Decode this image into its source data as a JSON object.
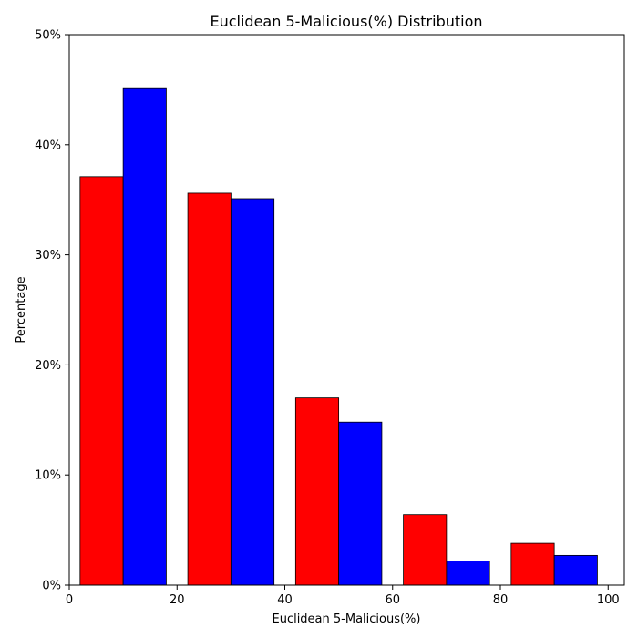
{
  "chart_data": {
    "type": "bar",
    "title": "Euclidean 5-Malicious(%) Distribution",
    "xlabel": "Euclidean 5-Malicious(%)",
    "ylabel": "Percentage",
    "xlim": [
      0,
      103
    ],
    "ylim": [
      0,
      50
    ],
    "x_ticks": [
      0,
      20,
      40,
      60,
      80,
      100
    ],
    "y_ticks": [
      0,
      10,
      20,
      30,
      40,
      50
    ],
    "y_tick_format": "percent",
    "grid": false,
    "bar_edge_color": "#000000",
    "series": [
      {
        "color": "#ff0000",
        "bars": [
          {
            "x_start": 2,
            "x_end": 10,
            "value": 37.1
          },
          {
            "x_start": 22,
            "x_end": 30,
            "value": 35.6
          },
          {
            "x_start": 42,
            "x_end": 50,
            "value": 17.0
          },
          {
            "x_start": 62,
            "x_end": 70,
            "value": 6.4
          },
          {
            "x_start": 82,
            "x_end": 90,
            "value": 3.8
          }
        ]
      },
      {
        "color": "#0000ff",
        "bars": [
          {
            "x_start": 10,
            "x_end": 18,
            "value": 45.1
          },
          {
            "x_start": 30,
            "x_end": 38,
            "value": 35.1
          },
          {
            "x_start": 50,
            "x_end": 58,
            "value": 14.8
          },
          {
            "x_start": 70,
            "x_end": 78,
            "value": 2.2
          },
          {
            "x_start": 90,
            "x_end": 98,
            "value": 2.7
          }
        ]
      }
    ]
  }
}
